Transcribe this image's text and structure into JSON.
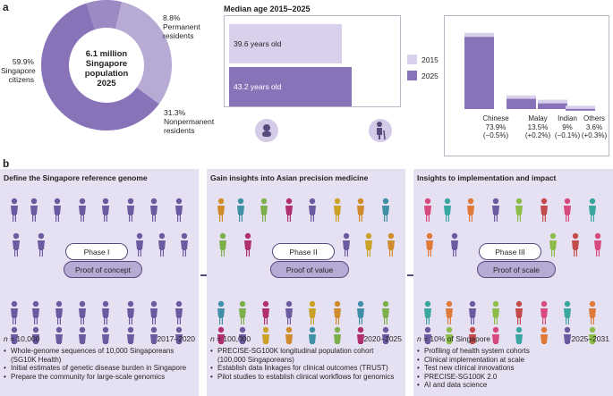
{
  "panel_a": {
    "label": "a"
  },
  "panel_b": {
    "label": "b"
  },
  "donut": {
    "center": [
      "6.1 million",
      "Singapore",
      "population",
      "2025"
    ],
    "slices": [
      {
        "pct": "59.9%",
        "name_lines": [
          "Singapore",
          "citizens"
        ],
        "value": 59.9,
        "color": "#8873b9"
      },
      {
        "pct": "8.8%",
        "name_lines": [
          "Permanent",
          "residents"
        ],
        "value": 8.8,
        "color": "#9b8ac4"
      },
      {
        "pct": "31.3%",
        "name_lines": [
          "Nonpermanent",
          "residents"
        ],
        "value": 31.3,
        "color": "#b7abd6"
      }
    ]
  },
  "median_age": {
    "title": "Median age 2015–2025",
    "bars": [
      {
        "label": "39.6 years old",
        "year": "2015",
        "value": 39.6
      },
      {
        "label": "43.2 years old",
        "year": "2025",
        "value": 43.2
      }
    ],
    "legend": [
      {
        "label": "2015",
        "color": "#d9d1ec"
      },
      {
        "label": "2025",
        "color": "#8873b9"
      }
    ],
    "icons": [
      "baby-icon",
      "elderly-person-icon"
    ]
  },
  "chart_data": [
    {
      "type": "pie",
      "title": "6.1 million Singapore population 2025",
      "categories": [
        "Singapore citizens",
        "Permanent residents",
        "Nonpermanent residents"
      ],
      "values": [
        59.9,
        8.8,
        31.3
      ]
    },
    {
      "type": "bar",
      "title": "Median age 2015–2025",
      "categories": [
        "2015",
        "2025"
      ],
      "values": [
        39.6,
        43.2
      ]
    },
    {
      "type": "bar",
      "categories": [
        "Chinese",
        "Malay",
        "Indian",
        "Others"
      ],
      "series": [
        {
          "name": "2015",
          "values": [
            74.4,
            13.3,
            9.1,
            3.3
          ]
        },
        {
          "name": "2025",
          "values": [
            73.9,
            13.5,
            9.0,
            3.6
          ]
        }
      ],
      "changes": [
        "(−0.5%)",
        "(+0.2%)",
        "(−0.1%)",
        "(+0.3%)"
      ]
    }
  ],
  "ethnicity": {
    "groups": [
      {
        "name": "Chinese",
        "pct": "73.9%",
        "change": "(−0.5%)"
      },
      {
        "name": "Malay",
        "pct": "13.5%",
        "change": "(+0.2%)"
      },
      {
        "name": "Indian",
        "pct": "9%",
        "change": "(−0.1%)"
      },
      {
        "name": "Others",
        "pct": "3.6%",
        "change": "(+0.3%)"
      }
    ]
  },
  "phases": [
    {
      "title": "Define the Singapore reference genome",
      "phase": "Phase I",
      "proof": "Proof of concept",
      "n_label": "n",
      "n_value": " = 10,000",
      "years": "2017–2020",
      "bullets": [
        "Whole-genome sequences of 10,000 Singaporeans (SG10K Health)",
        "Initial estimates of genetic disease burden in Singapore",
        "Prepare the community for large-scale genomics"
      ]
    },
    {
      "title": "Gain insights into Asian precision medicine",
      "phase": "Phase II",
      "proof": "Proof of value",
      "n_label": "n",
      "n_value": " = 100,000",
      "years": "2020–2025",
      "bullets": [
        "PRECISE-SG100K longitudinal population cohort (100,000 Singaporeans)",
        "Establish data linkages for clinical outcomes (TRUST)",
        "Pilot studies to establish clinical workflows for genomics"
      ]
    },
    {
      "title": "Insights to implementation and impact",
      "phase": "Phase III",
      "proof": "Proof of scale",
      "n_label": "n",
      "n_value": " = 10% of Singapore",
      "years": "2025–2031",
      "bullets": [
        "Profiling of health system cohorts",
        "Clinical implementation at scale",
        "Test new clinical innovations",
        "PRECISE-SG100K 2.0",
        "AI and data science"
      ]
    }
  ],
  "colors": {
    "dark_purple": "#574a7d",
    "mid_purple": "#8873b9",
    "light_purple": "#d9d1ec",
    "panel_bg": "#e6e1f2"
  }
}
